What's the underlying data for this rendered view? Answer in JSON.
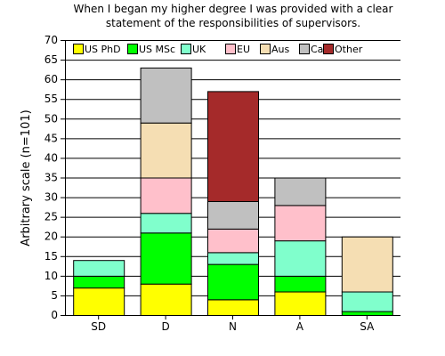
{
  "chart_data": {
    "type": "bar",
    "stacked": true,
    "title": "When I began my higher degree I was provided with a clear statement of the responsibilities of supervisors.",
    "title_lines": [
      "When I began my higher degree I was provided with a clear",
      "statement of the responsibilities of supervisors."
    ],
    "xlabel": "",
    "ylabel": "Arbitrary scale (n=101)",
    "ylim": [
      0,
      70
    ],
    "ytick_step": 5,
    "grid": true,
    "legend_position": "top",
    "categories": [
      "SD",
      "D",
      "N",
      "A",
      "SA"
    ],
    "series": [
      {
        "name": "US PhD",
        "color": "#ffff00",
        "values": [
          7,
          8,
          4,
          6,
          0
        ]
      },
      {
        "name": "US MSc",
        "color": "#00ff00",
        "values": [
          3,
          13,
          9,
          4,
          1
        ]
      },
      {
        "name": "UK",
        "color": "#80ffcc",
        "values": [
          4,
          5,
          3,
          9,
          5
        ]
      },
      {
        "name": "EU",
        "color": "#ffc0cb",
        "values": [
          0,
          9,
          6,
          9,
          0
        ]
      },
      {
        "name": "Aus",
        "color": "#f5deb3",
        "values": [
          0,
          14,
          0,
          0,
          14
        ]
      },
      {
        "name": "Ca",
        "color": "#c0c0c0",
        "values": [
          0,
          14,
          7,
          7,
          0
        ]
      },
      {
        "name": "Other",
        "color": "#a52a2a",
        "values": [
          0,
          0,
          28,
          0,
          0
        ]
      }
    ]
  }
}
